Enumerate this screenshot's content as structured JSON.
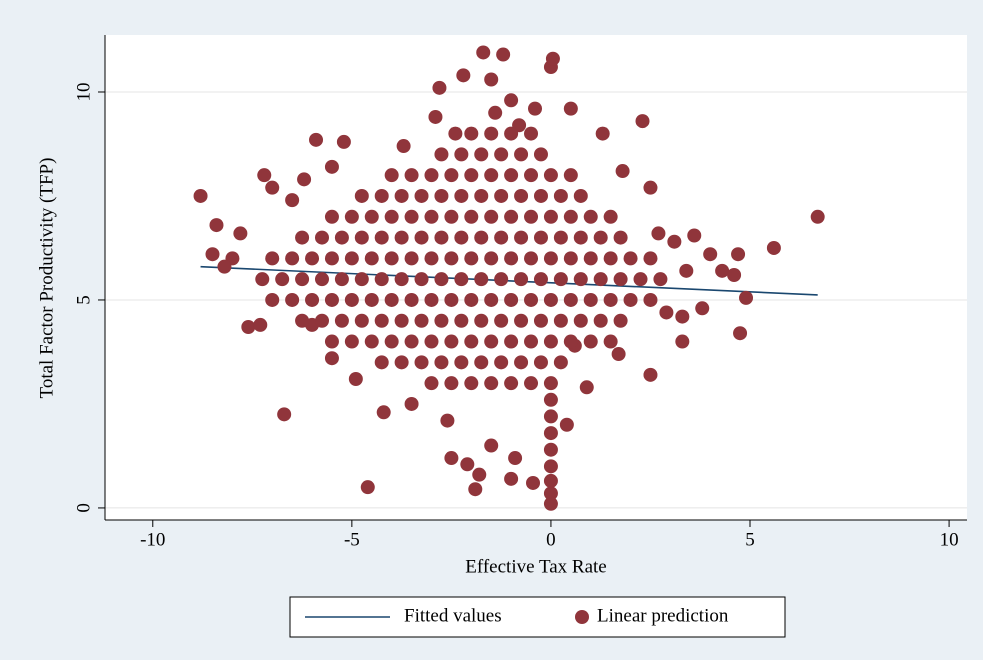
{
  "chart_data": {
    "type": "scatter",
    "xlabel": "Effective Tax Rate",
    "ylabel": "Total Factor Productivity (TFP)",
    "xlim": [
      -11.2,
      10.45
    ],
    "ylim": [
      -0.29,
      11.37
    ],
    "xticks": [
      -10,
      -5,
      0,
      5,
      10
    ],
    "yticks": [
      0,
      5,
      10
    ],
    "grid": true,
    "legend": "bottom",
    "series": [
      {
        "name": "Fitted values",
        "type": "line",
        "color": "#1a476f",
        "x": [
          -8.8,
          6.7
        ],
        "values": [
          5.8,
          5.12
        ]
      },
      {
        "name": "Linear prediction",
        "type": "scatter",
        "color": "#90353b",
        "x": [
          -8.8,
          -8.5,
          -8.4,
          -8,
          -7.8,
          -7.6,
          -7.3,
          -7.2,
          -7,
          -6.7,
          -6.5,
          -6.2,
          -5.9,
          -5.5,
          -5.2,
          -4.9,
          -4.6,
          -4.2,
          -3.7,
          -3.5,
          -2.9,
          -2.8,
          -2.6,
          -2.5,
          -2.2,
          -2.1,
          -1.9,
          -1.8,
          -1.7,
          -1.5,
          -1.5,
          -1.2,
          -1,
          -1,
          -0.9,
          -0.45,
          -0.4,
          0,
          0.05,
          0,
          0,
          0,
          0,
          0,
          0,
          0,
          0,
          0,
          0.4,
          0.5,
          0.6,
          0.9,
          1.3,
          1.7,
          1.8,
          2.3,
          2.5,
          2.7,
          3.1,
          3.3,
          3.4,
          3.6,
          3.8,
          4,
          4.3,
          4.6,
          4.7,
          4.75,
          4.9,
          5.6,
          6.7,
          2.5,
          2.9,
          3.3,
          -6,
          -5.5,
          -8.2,
          -1.4,
          -0.8,
          -2.4,
          -3,
          -2.5,
          -2,
          -1.5,
          -1,
          -0.5,
          -4.25,
          -3.75,
          -3.25,
          -2.75,
          -2.25,
          -1.75,
          -1.25,
          -0.75,
          -0.25,
          0.25,
          -5.5,
          -5,
          -4.5,
          -4,
          -3.5,
          -3,
          -2.5,
          -2,
          -1.5,
          -1,
          -0.5,
          0,
          0.5,
          1,
          1.5,
          -6.25,
          -5.75,
          -5.25,
          -4.75,
          -4.25,
          -3.75,
          -3.25,
          -2.75,
          -2.25,
          -1.75,
          -1.25,
          -0.75,
          -0.25,
          0.25,
          0.75,
          1.25,
          1.75,
          -7,
          -6.5,
          -6,
          -5.5,
          -5,
          -4.5,
          -4,
          -3.5,
          -3,
          -2.5,
          -2,
          -1.5,
          -1,
          -0.5,
          0,
          0.5,
          1,
          1.5,
          2,
          2.5,
          -7.25,
          -6.75,
          -6.25,
          -5.75,
          -5.25,
          -4.75,
          -4.25,
          -3.75,
          -3.25,
          -2.75,
          -2.25,
          -1.75,
          -1.25,
          -0.75,
          -0.25,
          0.25,
          0.75,
          1.25,
          1.75,
          2.25,
          2.75,
          -7,
          -6.5,
          -6,
          -5.5,
          -5,
          -4.5,
          -4,
          -3.5,
          -3,
          -2.5,
          -2,
          -1.5,
          -1,
          -0.5,
          0,
          0.5,
          1,
          1.5,
          2,
          2.5,
          -6.25,
          -5.75,
          -5.25,
          -4.75,
          -4.25,
          -3.75,
          -3.25,
          -2.75,
          -2.25,
          -1.75,
          -1.25,
          -0.75,
          -0.25,
          0.25,
          0.75,
          1.25,
          1.75,
          -5.5,
          -5,
          -4.5,
          -4,
          -3.5,
          -3,
          -2.5,
          -2,
          -1.5,
          -1,
          -0.5,
          0,
          0.5,
          1,
          1.5,
          -4.75,
          -4.25,
          -3.75,
          -3.25,
          -2.75,
          -2.25,
          -1.75,
          -1.25,
          -0.75,
          -0.25,
          0.25,
          0.75,
          -4,
          -3.5,
          -3,
          -2.5,
          -2,
          -1.5,
          -1,
          -0.5,
          0,
          0.5,
          -2.75,
          -2.25,
          -1.75,
          -1.25,
          -0.75,
          -0.25,
          -2,
          -1.5,
          -1,
          -0.5
        ],
        "values": [
          7.5,
          6.1,
          6.8,
          6,
          6.6,
          4.35,
          4.4,
          8,
          7.7,
          2.25,
          7.4,
          7.9,
          8.85,
          8.2,
          8.8,
          3.1,
          0.5,
          2.3,
          8.7,
          2.5,
          9.4,
          10.1,
          2.1,
          1.2,
          10.4,
          1.05,
          0.45,
          0.8,
          10.95,
          1.5,
          10.3,
          10.9,
          0.7,
          9.8,
          1.2,
          0.6,
          9.6,
          10.6,
          10.8,
          0.1,
          0.35,
          0.65,
          1,
          1.4,
          1.8,
          2.2,
          2.6,
          3,
          2,
          9.6,
          3.9,
          2.9,
          9,
          3.7,
          8.1,
          9.3,
          3.2,
          6.6,
          6.4,
          4,
          5.7,
          6.55,
          4.8,
          6.1,
          5.7,
          5.6,
          6.1,
          4.2,
          5.05,
          6.25,
          7,
          7.7,
          4.7,
          4.6,
          4.4,
          3.6,
          5.8,
          9.5,
          9.2,
          9,
          3,
          3,
          3,
          3,
          3,
          3,
          3.5,
          3.5,
          3.5,
          3.5,
          3.5,
          3.5,
          3.5,
          3.5,
          3.5,
          3.5,
          4,
          4,
          4,
          4,
          4,
          4,
          4,
          4,
          4,
          4,
          4,
          4,
          4,
          4,
          4,
          4.5,
          4.5,
          4.5,
          4.5,
          4.5,
          4.5,
          4.5,
          4.5,
          4.5,
          4.5,
          4.5,
          4.5,
          4.5,
          4.5,
          4.5,
          4.5,
          4.5,
          5,
          5,
          5,
          5,
          5,
          5,
          5,
          5,
          5,
          5,
          5,
          5,
          5,
          5,
          5,
          5,
          5,
          5,
          5,
          5,
          5.5,
          5.5,
          5.5,
          5.5,
          5.5,
          5.5,
          5.5,
          5.5,
          5.5,
          5.5,
          5.5,
          5.5,
          5.5,
          5.5,
          5.5,
          5.5,
          5.5,
          5.5,
          5.5,
          5.5,
          5.5,
          6,
          6,
          6,
          6,
          6,
          6,
          6,
          6,
          6,
          6,
          6,
          6,
          6,
          6,
          6,
          6,
          6,
          6,
          6,
          6,
          6.5,
          6.5,
          6.5,
          6.5,
          6.5,
          6.5,
          6.5,
          6.5,
          6.5,
          6.5,
          6.5,
          6.5,
          6.5,
          6.5,
          6.5,
          6.5,
          6.5,
          7,
          7,
          7,
          7,
          7,
          7,
          7,
          7,
          7,
          7,
          7,
          7,
          7,
          7,
          7,
          7.5,
          7.5,
          7.5,
          7.5,
          7.5,
          7.5,
          7.5,
          7.5,
          7.5,
          7.5,
          7.5,
          7.5,
          8,
          8,
          8,
          8,
          8,
          8,
          8,
          8,
          8,
          8,
          8.5,
          8.5,
          8.5,
          8.5,
          8.5,
          8.5,
          9,
          9,
          9,
          9
        ]
      }
    ]
  }
}
